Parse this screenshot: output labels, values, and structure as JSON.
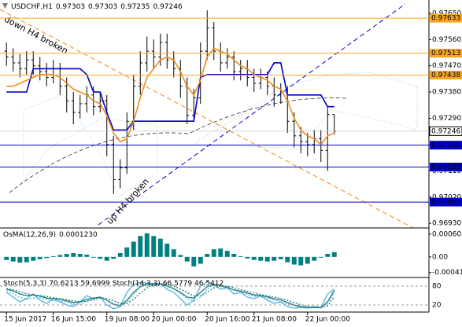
{
  "chart_data": [
    {
      "type": "ohlc",
      "title": "USDCHF,H1",
      "categories": [
        "15 Jun 2017",
        null,
        null,
        null,
        null,
        null,
        null,
        "16 Jun 15:00",
        null,
        null,
        null,
        null,
        null,
        null,
        null,
        "19 Jun 08:00",
        null,
        null,
        null,
        null,
        null,
        null,
        "20 Jun 00:00",
        null,
        null,
        null,
        null,
        null,
        null,
        null,
        "20 Jun 16:00",
        null,
        null,
        null,
        null,
        null,
        null,
        "21 Jun 08:00",
        null,
        null,
        null,
        null,
        null,
        null,
        null,
        "22 Jun 00:00",
        null,
        null,
        null,
        null
      ],
      "open": [
        0.9752,
        0.975,
        0.9748,
        0.9746,
        0.9749,
        0.9747,
        0.9745,
        0.9743,
        0.9746,
        0.974,
        0.9735,
        0.9731,
        0.9734,
        0.9737,
        0.9733,
        0.9735,
        0.972,
        0.9708,
        0.9712,
        0.9728,
        0.974,
        0.9748,
        0.9752,
        0.975,
        0.9755,
        0.9749,
        0.9746,
        0.974,
        0.973,
        0.9736,
        0.9752,
        0.976,
        0.9752,
        0.9748,
        0.975,
        0.9745,
        0.9746,
        0.9743,
        0.9741,
        0.9743,
        0.974,
        0.9737,
        0.9738,
        0.9728,
        0.9723,
        0.9721,
        0.972,
        0.9722,
        0.9718,
        0.97303
      ],
      "high": [
        0.9755,
        0.9753,
        0.9751,
        0.9752,
        0.9752,
        0.975,
        0.9748,
        0.9749,
        0.9748,
        0.9743,
        0.9738,
        0.9737,
        0.974,
        0.974,
        0.9738,
        0.9737,
        0.9723,
        0.9715,
        0.9731,
        0.9744,
        0.9752,
        0.9757,
        0.9756,
        0.9758,
        0.9758,
        0.9752,
        0.9749,
        0.9743,
        0.9739,
        0.9755,
        0.9766,
        0.9762,
        0.9755,
        0.9753,
        0.9752,
        0.9749,
        0.9749,
        0.9746,
        0.9746,
        0.9745,
        0.9743,
        0.9741,
        0.974,
        0.9731,
        0.9726,
        0.9724,
        0.9725,
        0.9725,
        0.9733,
        0.97303
      ],
      "low": [
        0.9747,
        0.9745,
        0.9743,
        0.9744,
        0.9744,
        0.9742,
        0.974,
        0.9741,
        0.9737,
        0.9731,
        0.9727,
        0.9729,
        0.9731,
        0.973,
        0.9731,
        0.9716,
        0.9703,
        0.9705,
        0.971,
        0.9725,
        0.9737,
        0.9745,
        0.9746,
        0.9747,
        0.9746,
        0.9743,
        0.9736,
        0.9727,
        0.9728,
        0.9734,
        0.9749,
        0.9749,
        0.9745,
        0.9746,
        0.9742,
        0.9742,
        0.974,
        0.9738,
        0.9739,
        0.9737,
        0.9733,
        0.9734,
        0.9724,
        0.9719,
        0.9717,
        0.9716,
        0.9717,
        0.9714,
        0.9711,
        0.97235
      ],
      "close": [
        0.975,
        0.9748,
        0.9746,
        0.9749,
        0.9747,
        0.9745,
        0.9743,
        0.9746,
        0.974,
        0.9735,
        0.9731,
        0.9734,
        0.9737,
        0.9733,
        0.9735,
        0.972,
        0.9708,
        0.9712,
        0.9728,
        0.974,
        0.9748,
        0.9752,
        0.975,
        0.9755,
        0.9749,
        0.9746,
        0.974,
        0.973,
        0.9736,
        0.9752,
        0.976,
        0.9752,
        0.9748,
        0.975,
        0.9745,
        0.9746,
        0.9743,
        0.9741,
        0.9743,
        0.974,
        0.9737,
        0.9738,
        0.9728,
        0.9723,
        0.9721,
        0.972,
        0.9722,
        0.9718,
        0.97303,
        0.97246
      ],
      "color": "#000000",
      "series": [
        {
          "color": "#0000cd",
          "values": [
            0.9738,
            0.9738,
            0.9738,
            0.9738,
            0.9746,
            0.9746,
            0.9746,
            0.9746,
            0.9746,
            0.9746,
            0.9746,
            0.9746,
            0.9744,
            0.9738,
            0.9738,
            0.9731,
            0.9725,
            0.9725,
            0.9725,
            0.9728,
            0.9728,
            0.9728,
            0.9728,
            0.9728,
            0.9728,
            0.9728,
            0.9728,
            0.9728,
            0.9728,
            0.9743,
            0.9744,
            0.9744,
            0.9744,
            0.9744,
            0.9744,
            0.9744,
            0.9744,
            0.9744,
            0.9744,
            0.9744,
            0.9748,
            0.9748,
            0.9737,
            0.9737,
            0.9737,
            0.9737,
            0.9737,
            0.9737,
            0.9733,
            0.9733
          ]
        },
        {
          "color": "#f08c1e",
          "values": [
            0.974,
            0.974,
            0.9741,
            0.9742,
            0.9743,
            0.9744,
            0.9744,
            0.9744,
            0.9743,
            0.9741,
            0.9739,
            0.9738,
            0.9737,
            0.9735,
            0.9734,
            0.973,
            0.9724,
            0.9721,
            0.9722,
            0.9728,
            0.9736,
            0.9743,
            0.9746,
            0.9749,
            0.975,
            0.9749,
            0.9745,
            0.974,
            0.9737,
            0.9742,
            0.975,
            0.9753,
            0.9752,
            0.9751,
            0.9749,
            0.9747,
            0.9746,
            0.9744,
            0.9743,
            0.9742,
            0.974,
            0.9739,
            0.9735,
            0.9729,
            0.9725,
            0.9723,
            0.9722,
            0.972,
            0.9723,
            0.9724
          ]
        }
      ],
      "levels": [
        {
          "value": 0.97633,
          "color": "#f5a623"
        },
        {
          "value": 0.97513,
          "color": "#f5a623"
        },
        {
          "value": 0.97438,
          "color": "#f5a623"
        },
        {
          "value": 0.97198,
          "color": "#0000cd"
        },
        {
          "value": 0.97123,
          "color": "#0000cd"
        },
        {
          "value": 0.97003,
          "color": "#0000cd"
        }
      ],
      "annotations": [
        "down H4 broken",
        "up H4 broken"
      ],
      "ylim": [
        0.96917,
        0.9769
      ],
      "yticks": [
        {
          "value": 0.9693,
          "label": "0.96930"
        },
        {
          "value": 0.9702,
          "label": "0.97020"
        },
        {
          "value": 0.9711,
          "label": "0.97110"
        },
        {
          "value": 0.972,
          "label": "0.97200"
        },
        {
          "value": 0.9729,
          "label": "0.97290"
        },
        {
          "value": 0.9738,
          "label": "0.97380"
        },
        {
          "value": 0.9747,
          "label": "0.97470"
        },
        {
          "value": 0.9756,
          "label": "0.97560"
        },
        {
          "value": 0.9765,
          "label": "0.97650"
        }
      ]
    },
    {
      "type": "bar",
      "title": "OsMA(12,26,9)",
      "color": "#008080",
      "values": [
        -8e-05,
        -0.00012,
        -0.00015,
        -0.00014,
        -0.0001,
        -6e-05,
        -3e-05,
        2e-05,
        5e-05,
        8e-05,
        0.0001,
        8e-05,
        6e-05,
        -2e-05,
        -5e-05,
        -0.0001,
        -5e-05,
        0.0001,
        0.00025,
        0.0004,
        0.00055,
        0.00062,
        0.00055,
        0.00048,
        0.00035,
        0.0002,
        5e-05,
        -0.00012,
        -0.00025,
        -0.00018,
        8e-05,
        0.0002,
        0.00022,
        0.00016,
        8e-05,
        2e-05,
        -4e-05,
        -8e-05,
        -0.0001,
        -0.00012,
        -0.0001,
        -6e-05,
        -0.00014,
        -0.0002,
        -0.00022,
        -0.00018,
        -0.0001,
        -2e-05,
        8e-05,
        0.000123
      ],
      "value_labels": [
        null,
        null,
        null,
        null,
        null,
        null,
        null,
        null,
        null,
        null,
        null,
        null,
        null,
        null,
        null,
        null,
        null,
        null,
        null,
        null,
        null,
        null,
        null,
        null,
        null,
        null,
        null,
        null,
        null,
        null,
        null,
        null,
        null,
        null,
        null,
        null,
        null,
        null,
        null,
        null,
        null,
        null,
        null,
        null,
        null,
        null,
        null,
        null,
        null,
        "0.0001230"
      ],
      "ylim": [
        -0.00052,
        0.00072
      ],
      "yticks": [
        {
          "value": 0.0006,
          "label": "0.00060"
        },
        {
          "value": 0,
          "label": "0.00"
        },
        {
          "value": -0.00041,
          "label": "-0.00041"
        }
      ]
    },
    {
      "type": "line",
      "series": [
        {
          "name": "Stoch(5,3,3)",
          "color": "#4fb3e0",
          "style": "solid",
          "values": [
            60,
            45,
            30,
            40,
            55,
            35,
            25,
            40,
            30,
            20,
            15,
            30,
            50,
            40,
            45,
            20,
            8,
            15,
            60,
            85,
            92,
            90,
            80,
            88,
            70,
            60,
            40,
            20,
            35,
            80,
            95,
            85,
            70,
            75,
            55,
            60,
            45,
            40,
            50,
            35,
            25,
            30,
            15,
            10,
            12,
            10,
            15,
            12,
            55,
            70.6213
          ]
        },
        {
          "color": "#4fb3e0",
          "style": "dotted",
          "values": [
            65,
            55,
            45,
            38,
            42,
            43,
            38,
            33,
            32,
            30,
            22,
            22,
            32,
            40,
            45,
            35,
            24,
            14,
            28,
            53,
            79,
            89,
            87,
            86,
            79,
            73,
            57,
            40,
            32,
            45,
            70,
            87,
            83,
            77,
            67,
            63,
            53,
            48,
            45,
            42,
            37,
            30,
            24,
            18,
            12,
            11,
            12,
            12,
            27,
            59.6999
          ]
        },
        {
          "name": "Stoch(14,3,3)",
          "color": "#1e7b7b",
          "style": "solid",
          "values": [
            70,
            65,
            55,
            50,
            52,
            48,
            42,
            40,
            38,
            33,
            28,
            30,
            38,
            42,
            45,
            35,
            22,
            18,
            35,
            60,
            78,
            88,
            88,
            87,
            80,
            72,
            60,
            45,
            42,
            60,
            78,
            85,
            80,
            76,
            68,
            64,
            58,
            52,
            50,
            46,
            40,
            36,
            28,
            20,
            15,
            12,
            12,
            11,
            30,
            66.5779
          ]
        },
        {
          "color": "#1e7b7b",
          "style": "dotted",
          "values": [
            72,
            68,
            62,
            56,
            52,
            50,
            47,
            43,
            40,
            37,
            33,
            30,
            32,
            36,
            42,
            41,
            34,
            25,
            25,
            38,
            58,
            75,
            85,
            88,
            85,
            80,
            71,
            59,
            49,
            49,
            60,
            74,
            81,
            80,
            75,
            69,
            63,
            58,
            53,
            49,
            45,
            41,
            35,
            28,
            21,
            16,
            13,
            12,
            17,
            46.5412
          ]
        }
      ],
      "ylim": [
        0,
        100
      ],
      "yticks": [
        80,
        20
      ]
    }
  ]
}
